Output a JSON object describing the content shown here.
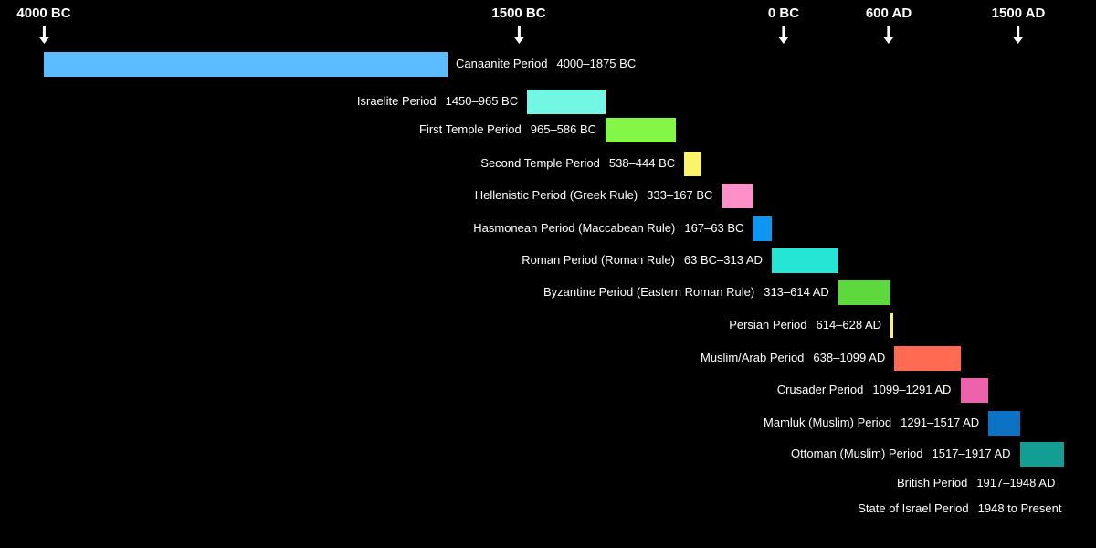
{
  "chart_data": {
    "type": "timeline",
    "title": "",
    "x_markers": [
      {
        "label": "4000 BC",
        "year": -4000
      },
      {
        "label": "1500 BC",
        "year": -1500
      },
      {
        "label": "0 BC",
        "year": 0
      },
      {
        "label": "600 AD",
        "year": 600
      },
      {
        "label": "1500 AD",
        "year": 1500
      }
    ],
    "periods": [
      {
        "name": "Canaanite Period",
        "dates": "4000–1875 BC",
        "start": -4000,
        "end": -1875,
        "color": "#5bbcff",
        "label_side": "right"
      },
      {
        "name": "Israelite Period",
        "dates": "1450–965 BC",
        "start": -1450,
        "end": -965,
        "color": "#72f7e4",
        "label_side": "left"
      },
      {
        "name": "First Temple Period",
        "dates": "965–586 BC",
        "start": -965,
        "end": -586,
        "color": "#84f645",
        "label_side": "left"
      },
      {
        "name": "Second Temple Period",
        "dates": "538–444 BC",
        "start": -538,
        "end": -444,
        "color": "#fbf46b",
        "label_side": "left"
      },
      {
        "name": "Hellenistic Period (Greek Rule)",
        "dates": "333–167 BC",
        "start": -333,
        "end": -167,
        "color": "#ff8fc7",
        "label_side": "left"
      },
      {
        "name": "Hasmonean Period (Maccabean Rule)",
        "dates": "167–63 BC",
        "start": -167,
        "end": -63,
        "color": "#0e96f2",
        "label_side": "left"
      },
      {
        "name": "Roman Period (Roman Rule)",
        "dates": "63 BC–313 AD",
        "start": -63,
        "end": 313,
        "color": "#25e5d5",
        "label_side": "left"
      },
      {
        "name": "Byzantine Period (Eastern Roman Rule)",
        "dates": "313–614 AD",
        "start": 313,
        "end": 614,
        "color": "#5dd93e",
        "label_side": "left"
      },
      {
        "name": "Persian Period",
        "dates": "614–628 AD",
        "start": 614,
        "end": 628,
        "color": "#fbf46b",
        "label_side": "left"
      },
      {
        "name": "Muslim/Arab Period",
        "dates": "638–1099 AD",
        "start": 638,
        "end": 1099,
        "color": "#ff6b52",
        "label_side": "left"
      },
      {
        "name": "Crusader Period",
        "dates": "1099–1291 AD",
        "start": 1099,
        "end": 1291,
        "color": "#ee62ad",
        "label_side": "left"
      },
      {
        "name": "Mamluk (Muslim) Period",
        "dates": "1291–1517 AD",
        "start": 1291,
        "end": 1517,
        "color": "#0b72c4",
        "label_side": "left"
      },
      {
        "name": "Ottoman (Muslim) Period",
        "dates": "1517–1917 AD",
        "start": 1517,
        "end": 1917,
        "color": "#149e93",
        "label_side": "left"
      },
      {
        "name": "British Period",
        "dates": "1917–1948 AD",
        "start": 1917,
        "end": 1948,
        "color": "#aaaaaa",
        "label_side": "left"
      },
      {
        "name": "State of Israel Period",
        "dates": "1948 to Present",
        "start": 1948,
        "end": 2024,
        "color": "#aaaaaa",
        "label_side": "left"
      }
    ]
  }
}
